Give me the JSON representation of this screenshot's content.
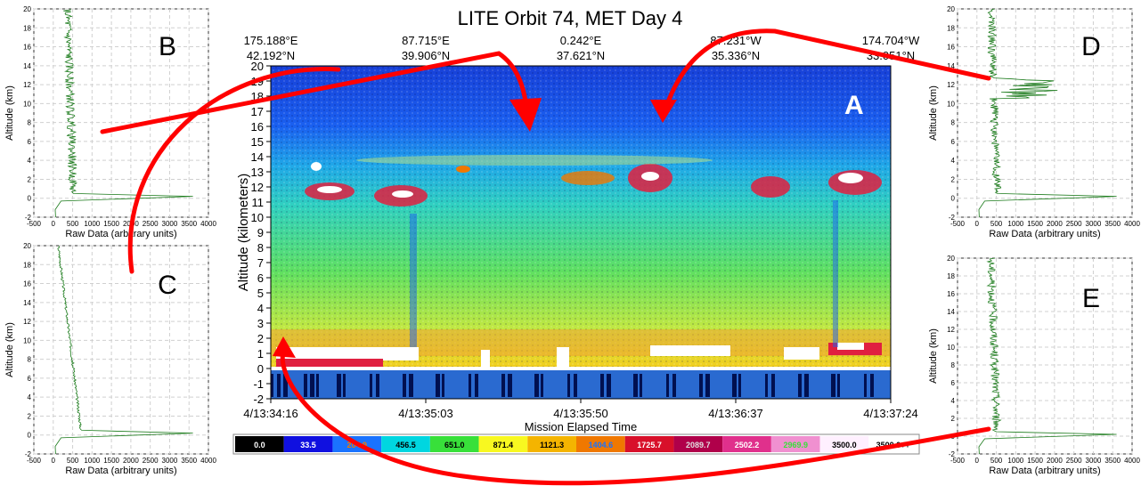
{
  "main_plot": {
    "title": "LITE Orbit 74, MET Day 4",
    "panel_label": "A",
    "y_label": "Altitude (kilometers)",
    "x_label": "Mission Elapsed Time",
    "y_ticks": [
      "20",
      "19",
      "18",
      "17",
      "16",
      "15",
      "14",
      "13",
      "12",
      "11",
      "10",
      "9",
      "8",
      "7",
      "6",
      "5",
      "4",
      "3",
      "2",
      "1",
      "0",
      "-1",
      "-2"
    ],
    "x_ticks": [
      "4/13:34:16",
      "4/13:35:03",
      "4/13:35:50",
      "4/13:36:37",
      "4/13:37:24"
    ],
    "lon_labels": [
      "175.188°E",
      "87.715°E",
      "0.242°E",
      "87.231°W",
      "174.704°W"
    ],
    "lat_labels": [
      "42.192°N",
      "39.906°N",
      "37.621°N",
      "35.336°N",
      "33.051°N"
    ]
  },
  "colorbar": {
    "labels": [
      "0.0",
      "33.5",
      "204.9",
      "456.5",
      "651.0",
      "871.4",
      "1121.3",
      "1404.6",
      "1725.7",
      "2089.7",
      "2502.2",
      "2969.9",
      "3500.0",
      "3500.0++"
    ],
    "colors": [
      "#000000",
      "#1010e0",
      "#1a73ff",
      "#00d6e0",
      "#38e03a",
      "#f8f820",
      "#f4b400",
      "#f07800",
      "#d8102a",
      "#b0004a",
      "#e0308c",
      "#f090d0",
      "#fff0ff",
      "#ffffff"
    ],
    "text_colors": [
      "#ffffff",
      "#ffffff",
      "#f07800",
      "#000000",
      "#000000",
      "#000000",
      "#000000",
      "#1a73ff",
      "#ffffff",
      "#e0e0e0",
      "#ffffff",
      "#38e03a",
      "#000000",
      "#000000"
    ]
  },
  "profiles": {
    "x_ticks": [
      "-500",
      "0",
      "500",
      "1000",
      "1500",
      "2000",
      "2500",
      "3000",
      "3500",
      "4000"
    ],
    "y_ticks": [
      "20",
      "18",
      "16",
      "14",
      "12",
      "10",
      "8",
      "6",
      "4",
      "2",
      "0",
      "-2"
    ],
    "x_label": "Raw Data (arbitrary units)",
    "y_label": "Altitude (km)",
    "letters": {
      "B": "B",
      "C": "C",
      "D": "D",
      "E": "E"
    }
  },
  "chart_data": {
    "type": "heatmap",
    "title": "LITE Orbit 74, MET Day 4",
    "xlabel": "Mission Elapsed Time",
    "ylabel": "Altitude (kilometers)",
    "x_ticks": [
      "4/13:34:16",
      "4/13:35:03",
      "4/13:35:50",
      "4/13:36:37",
      "4/13:37:24"
    ],
    "ylim": [
      -2,
      20
    ],
    "colorbar_levels": [
      0.0,
      33.5,
      204.9,
      456.5,
      651.0,
      871.4,
      1121.3,
      1404.6,
      1725.7,
      2089.7,
      2502.2,
      2969.9,
      3500.0
    ],
    "profiles_xlim": [
      -500,
      4000
    ],
    "profiles_ylim": [
      -2,
      20
    ]
  }
}
